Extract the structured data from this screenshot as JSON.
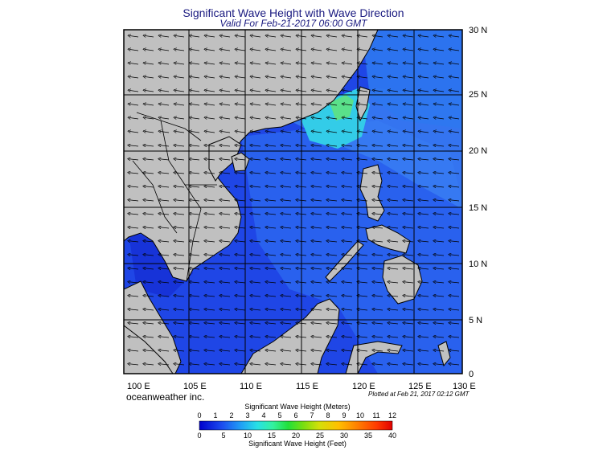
{
  "title": "Significant Wave Height with Wave Direction",
  "subtitle": "Valid For Feb-21-2017 06:00 GMT",
  "credit": "oceanweather inc.",
  "plotted": "Plotted at Feb 21, 2017 02:12 GMT",
  "map": {
    "lon_labels": [
      "100 E",
      "105 E",
      "110 E",
      "115 E",
      "120 E",
      "125 E",
      "130 E"
    ],
    "lat_labels": [
      "30 N",
      "25 N",
      "20 N",
      "15 N",
      "10 N",
      "5 N",
      "0"
    ],
    "colors": {
      "land": "#c0c0c0",
      "sea_deep": "#1f3fe0",
      "sea_mid": "#2a6ef0",
      "sea_light": "#3a95f5",
      "sea_cyan": "#33d6e8",
      "sea_green": "#5be07a",
      "grid": "#000000"
    }
  },
  "colorbar": {
    "title_top": "Significant Wave Height (Meters)",
    "title_bottom": "Significant Wave Height (Feet)",
    "meters_ticks": [
      "0",
      "1",
      "2",
      "3",
      "4",
      "5",
      "6",
      "7",
      "8",
      "9",
      "10",
      "11",
      "12"
    ],
    "feet_ticks": [
      "0",
      "5",
      "10",
      "15",
      "20",
      "25",
      "30",
      "35",
      "40"
    ]
  }
}
